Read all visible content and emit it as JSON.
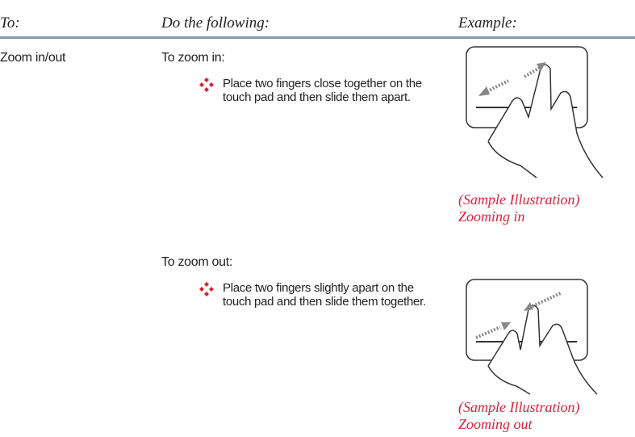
{
  "header": {
    "columns": [
      "To:",
      "Do the following:",
      "Example:"
    ]
  },
  "rows": [
    {
      "action": "Zoom in/out",
      "steps": [
        {
          "heading": "To zoom in:",
          "bullet": "Place two fingers close together on the touch pad and then slide them apart.",
          "caption": [
            "(Sample Illustration)",
            "Zooming in"
          ]
        },
        {
          "heading": "To zoom out:",
          "bullet": "Place two fingers slightly apart on the touch pad and then slide them together.",
          "caption": [
            "(Sample Illustration)",
            "Zooming out"
          ]
        }
      ]
    }
  ]
}
